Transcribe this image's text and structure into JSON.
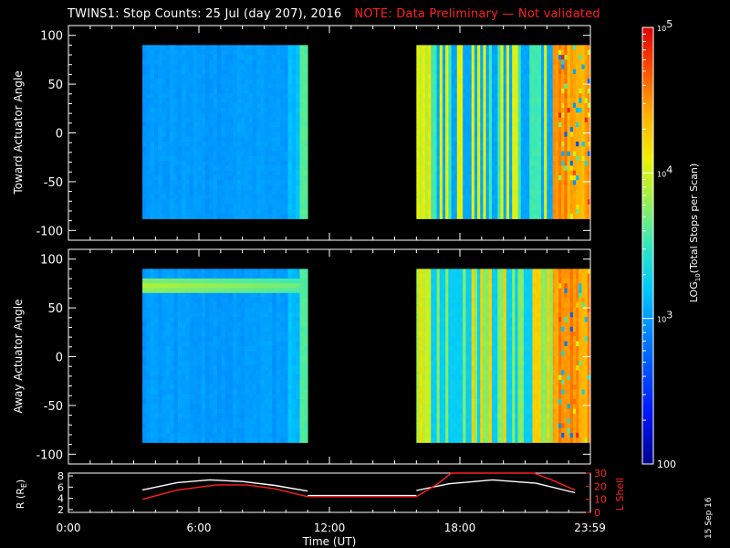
{
  "title": {
    "main": "TWINS1: Stop Counts: 25 Jul (day 207), 2016",
    "note": "NOTE: Data Preliminary — Not validated"
  },
  "datestamp": "15 Sep 16",
  "colors": {
    "note": "#ff2020",
    "lshell_line": "#ff2020",
    "r_line": "#ffffff"
  },
  "chart_data": [
    {
      "type": "heatmap",
      "name": "toward-panel",
      "ylabel": "Toward Actuator Angle",
      "ylim": [
        -110,
        110
      ],
      "yticks": [
        100,
        50,
        0,
        -50,
        -100
      ],
      "xlim": [
        0,
        24
      ],
      "angle_range": [
        -88,
        90
      ],
      "data_blocks": [
        {
          "t_start": 3.4,
          "t_end": 11.0,
          "typical_log10_counts": 3.0
        },
        {
          "t_start": 16.0,
          "t_end": 24.0,
          "typical_log10_counts": 3.4
        }
      ]
    },
    {
      "type": "heatmap",
      "name": "away-panel",
      "ylabel": "Away Actuator Angle",
      "ylim": [
        -110,
        110
      ],
      "yticks": [
        100,
        50,
        0,
        -50,
        -100
      ],
      "xlim": [
        0,
        24
      ],
      "angle_range": [
        -88,
        90
      ],
      "data_blocks": [
        {
          "t_start": 3.4,
          "t_end": 11.0,
          "typical_log10_counts": 3.0,
          "band_angle": 72,
          "band_log10_counts": 3.9
        },
        {
          "t_start": 16.0,
          "t_end": 24.0,
          "typical_log10_counts": 3.6
        }
      ]
    },
    {
      "type": "line",
      "name": "ephemeris-panel",
      "xlabel": "Time (UT)",
      "ylabel_left": "R (R",
      "ylabel_left_sub": "E",
      "ylabel_left_close": ")",
      "ylabel_right": "L Shell",
      "yticks_left": [
        8,
        6,
        4,
        2
      ],
      "yticks_right": [
        30,
        20,
        10,
        0
      ],
      "ylim_left": [
        1.5,
        8.5
      ],
      "ylim_right": [
        0,
        30
      ],
      "xticks": [
        {
          "t": 0,
          "label": "0:00"
        },
        {
          "t": 6,
          "label": "6:00"
        },
        {
          "t": 12,
          "label": "12:00"
        },
        {
          "t": 18,
          "label": "18:00"
        },
        {
          "t": 23.983,
          "label": "23:59"
        }
      ],
      "series": [
        {
          "axis": "left",
          "color": "#ffffff",
          "x": [
            3.4,
            5,
            6.5,
            8,
            9.5,
            11.0,
            16.0,
            17.5,
            19.5,
            21.5,
            23.3
          ],
          "y": [
            5.5,
            6.8,
            7.3,
            7.0,
            6.3,
            5.3,
            5.4,
            6.6,
            7.3,
            6.7,
            5.0
          ]
        },
        {
          "axis": "right",
          "color": "#ff2020",
          "x": [
            3.4,
            5,
            6.8,
            8.2,
            9.5,
            11.0,
            16.0,
            17.0,
            17.6,
            21.4,
            22.2,
            23.3
          ],
          "y": [
            10,
            17,
            21,
            21,
            18,
            12,
            12,
            22,
            30,
            30,
            25,
            17
          ]
        }
      ]
    }
  ],
  "colorbar": {
    "label": "LOG",
    "label_sub": "10",
    "label_rest": "(Total Stops per Scan)",
    "range_log10": [
      2,
      5
    ],
    "ticks": [
      {
        "value": 5,
        "base": "10",
        "exp": "5"
      },
      {
        "value": 4,
        "base": "10",
        "exp": "4"
      },
      {
        "value": 3,
        "base": "10",
        "exp": "3"
      },
      {
        "value": 2,
        "text": "100"
      }
    ]
  }
}
